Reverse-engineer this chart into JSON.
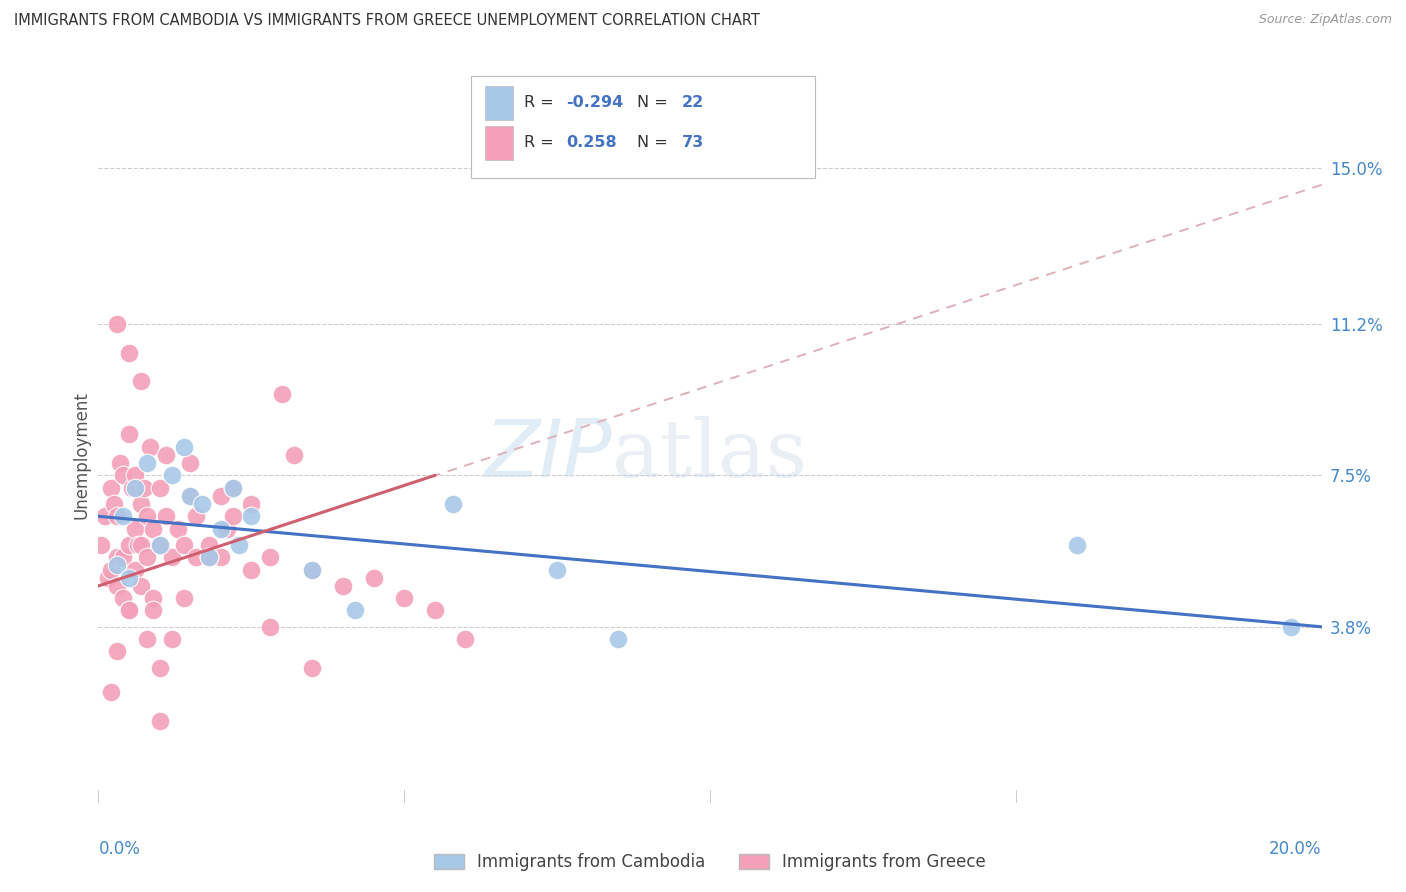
{
  "title": "IMMIGRANTS FROM CAMBODIA VS IMMIGRANTS FROM GREECE UNEMPLOYMENT CORRELATION CHART",
  "source": "Source: ZipAtlas.com",
  "ylabel": "Unemployment",
  "ytick_values": [
    3.8,
    7.5,
    11.2,
    15.0
  ],
  "xlim": [
    0.0,
    20.0
  ],
  "ylim": [
    -0.5,
    16.5
  ],
  "watermark_zip": "ZIP",
  "watermark_atlas": "atlas",
  "legend_r_cambodia": "-0.294",
  "legend_n_cambodia": "22",
  "legend_r_greece": "0.258",
  "legend_n_greece": "73",
  "color_cambodia": "#a8c8e8",
  "color_greece": "#f4a0b8",
  "color_line_cambodia": "#4472c4",
  "color_line_greece": "#d06070",
  "color_line_dashed": "#e0b0b8",
  "trendline_cam_x0": 0.0,
  "trendline_cam_y0": 6.5,
  "trendline_cam_x1": 20.0,
  "trendline_cam_y1": 3.8,
  "trendline_gre_solid_x0": 0.0,
  "trendline_gre_solid_y0": 4.8,
  "trendline_gre_solid_x1": 5.5,
  "trendline_gre_solid_y1": 7.5,
  "trendline_gre_dash_x0": 0.0,
  "trendline_gre_dash_y0": 4.8,
  "trendline_gre_dash_x1": 20.0,
  "trendline_gre_dash_y1": 14.6,
  "cambodia_x": [
    0.3,
    0.4,
    0.5,
    0.6,
    0.8,
    1.0,
    1.2,
    1.4,
    1.5,
    1.7,
    1.8,
    2.0,
    2.2,
    2.3,
    2.5,
    3.5,
    4.2,
    5.8,
    7.5,
    8.5,
    16.0,
    19.5
  ],
  "cambodia_y": [
    5.3,
    6.5,
    5.0,
    7.2,
    7.8,
    5.8,
    7.5,
    8.2,
    7.0,
    6.8,
    5.5,
    6.2,
    7.2,
    5.8,
    6.5,
    5.2,
    4.2,
    6.8,
    5.2,
    3.5,
    5.8,
    3.8
  ],
  "greece_x": [
    0.05,
    0.1,
    0.15,
    0.2,
    0.2,
    0.25,
    0.3,
    0.3,
    0.3,
    0.35,
    0.4,
    0.4,
    0.4,
    0.5,
    0.5,
    0.5,
    0.55,
    0.6,
    0.6,
    0.6,
    0.65,
    0.7,
    0.7,
    0.7,
    0.75,
    0.8,
    0.8,
    0.85,
    0.9,
    0.9,
    1.0,
    1.0,
    1.1,
    1.1,
    1.2,
    1.3,
    1.4,
    1.5,
    1.5,
    1.6,
    1.6,
    1.8,
    2.0,
    2.0,
    2.1,
    2.2,
    2.5,
    2.5,
    2.8,
    3.0,
    3.2,
    3.5,
    4.0,
    4.5,
    5.0,
    5.5,
    6.0,
    0.3,
    0.5,
    0.7,
    0.8,
    0.9,
    1.0,
    1.2,
    1.4,
    1.8,
    2.2,
    2.8,
    3.5,
    0.2,
    0.3,
    0.5,
    1.0
  ],
  "greece_y": [
    5.8,
    6.5,
    5.0,
    5.2,
    7.2,
    6.8,
    4.8,
    5.5,
    6.5,
    7.8,
    4.5,
    5.5,
    7.5,
    4.2,
    5.8,
    8.5,
    7.2,
    5.2,
    6.2,
    7.5,
    5.8,
    4.8,
    5.8,
    6.8,
    7.2,
    5.5,
    6.5,
    8.2,
    4.5,
    6.2,
    5.8,
    7.2,
    6.5,
    8.0,
    5.5,
    6.2,
    5.8,
    7.0,
    7.8,
    5.5,
    6.5,
    5.8,
    5.5,
    7.0,
    6.2,
    7.2,
    5.2,
    6.8,
    5.5,
    9.5,
    8.0,
    5.2,
    4.8,
    5.0,
    4.5,
    4.2,
    3.5,
    11.2,
    10.5,
    9.8,
    3.5,
    4.2,
    2.8,
    3.5,
    4.5,
    5.5,
    6.5,
    3.8,
    2.8,
    2.2,
    3.2,
    4.2,
    1.5
  ]
}
